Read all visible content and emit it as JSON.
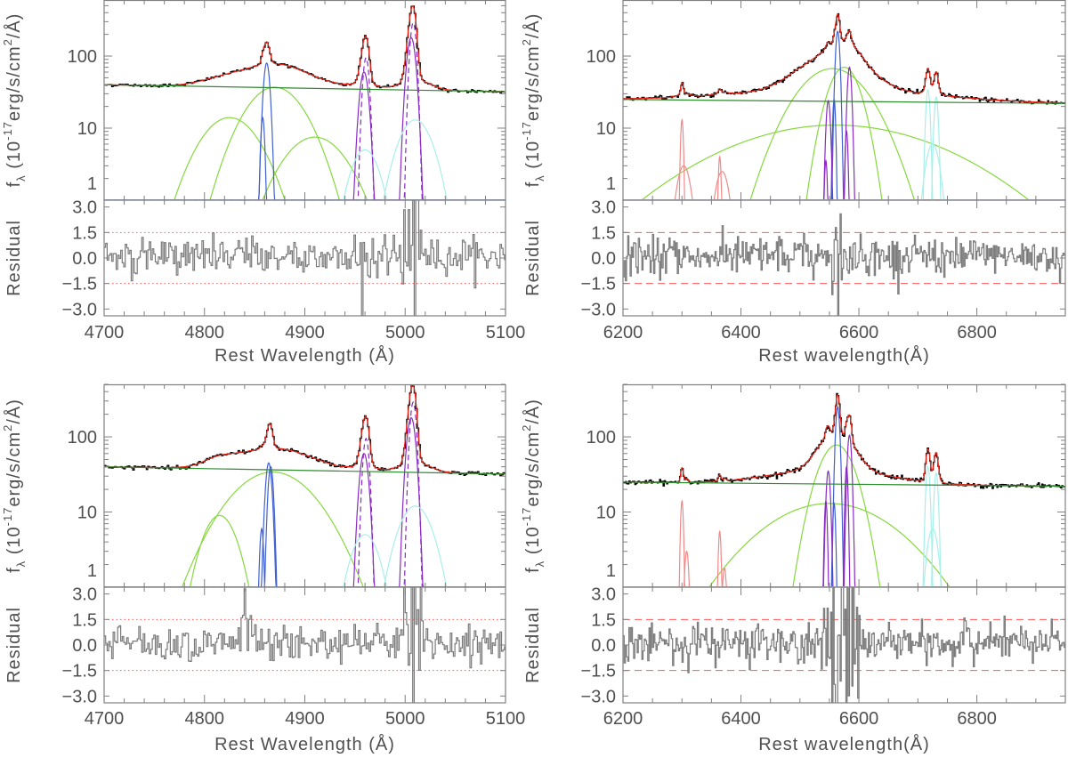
{
  "chart_data": [
    {
      "type": "line",
      "panel": "top-left",
      "xlabel": "Rest Wavelength (Å)",
      "ylabel": {
        "f": "f",
        "sub": "λ",
        "open": " (10",
        "exp": "-17",
        "unit": "erg/s/cm",
        "sq": "2",
        "close": "/Å)"
      },
      "residual_label": "Residual",
      "xlim": [
        4700,
        5100
      ],
      "ylim": [
        1,
        600
      ],
      "yscale": "log",
      "xticks": [
        "4700",
        "4800",
        "4900",
        "5000",
        "5100"
      ],
      "xtick_values": [
        4700,
        4800,
        4900,
        5000,
        5100
      ],
      "xminor": 20,
      "yticks": [
        "1",
        "10",
        "100"
      ],
      "ytick_values": [
        1,
        10,
        100
      ],
      "residual_ticks": [
        "3.0",
        "1.5",
        "0.0",
        "−1.5",
        "−3.0"
      ],
      "residual_tick_values": [
        3,
        1.5,
        0,
        -1.5,
        -3
      ],
      "residual_lim": [
        -3.4,
        3.4
      ],
      "residual_lines": [
        1.5,
        -1.5
      ],
      "residual_line_style": "dotted",
      "continuum": [
        40,
        32
      ],
      "bin": 1.5,
      "noise": 0.025,
      "residual_spikes": [
        {
          "c": 5007,
          "a": 4
        },
        {
          "c": 4959,
          "a": 1.2
        }
      ],
      "components": [
        {
          "kind": "broad",
          "c": 4825,
          "a": 14,
          "s": 24
        },
        {
          "kind": "broad",
          "c": 4870,
          "a": 37,
          "s": 24
        },
        {
          "kind": "broad",
          "c": 4910,
          "a": 7.5,
          "s": 26
        },
        {
          "kind": "narrow",
          "c": 4862,
          "a": 80,
          "s": 2.6
        },
        {
          "kind": "narrow",
          "c": 4858,
          "a": 14,
          "s": 1.6
        },
        {
          "kind": "oiii",
          "c": 4959,
          "a": 60,
          "s": 3.6
        },
        {
          "kind": "oiii-dashed",
          "c": 4961,
          "a": 95,
          "s": 2.6
        },
        {
          "kind": "oiii",
          "c": 5006,
          "a": 180,
          "s": 3.6
        },
        {
          "kind": "oiii-dashed",
          "c": 5008,
          "a": 290,
          "s": 2.6
        },
        {
          "kind": "wing",
          "c": 4960,
          "a": 5,
          "s": 12
        },
        {
          "kind": "wing",
          "c": 5010,
          "a": 13,
          "s": 14
        }
      ]
    },
    {
      "type": "line",
      "panel": "top-right",
      "xlabel": "Rest wavelength(Å)",
      "ylabel": {
        "f": "f",
        "sub": "λ",
        "open": " (10",
        "exp": "-17",
        "unit": "erg/s/cm",
        "sq": "2",
        "close": "/Å)"
      },
      "residual_label": "Residual",
      "xlim": [
        6200,
        6950
      ],
      "ylim": [
        1,
        600
      ],
      "yscale": "log",
      "xticks": [
        "6200",
        "6400",
        "6600",
        "6800"
      ],
      "xtick_values": [
        6200,
        6400,
        6600,
        6800
      ],
      "xminor": 50,
      "yticks": [
        "1",
        "10",
        "100"
      ],
      "ytick_values": [
        1,
        10,
        100
      ],
      "residual_ticks": [
        "3.0",
        "1.5",
        "0.0",
        "−1.5",
        "−3.0"
      ],
      "residual_tick_values": [
        3,
        1.5,
        0,
        -1.5,
        -3
      ],
      "residual_lim": [
        -3.4,
        3.4
      ],
      "residual_lines": [
        1.5,
        -1.5
      ],
      "residual_line_style": "dashed",
      "continuum": [
        25,
        22
      ],
      "bin": 2,
      "noise": 0.035,
      "residual_spikes": [
        {
          "c": 6563,
          "a": 3
        }
      ],
      "components": [
        {
          "kind": "broad",
          "c": 6555,
          "a": 67,
          "s": 48
        },
        {
          "kind": "broad",
          "c": 6575,
          "a": 70,
          "s": 22
        },
        {
          "kind": "broad",
          "c": 6560,
          "a": 11,
          "s": 150
        },
        {
          "kind": "narrow",
          "c": 6564,
          "a": 220,
          "s": 3
        },
        {
          "kind": "narrow",
          "c": 6558,
          "a": 25,
          "s": 2
        },
        {
          "kind": "oiii",
          "c": 6548,
          "a": 24,
          "s": 3
        },
        {
          "kind": "oiii",
          "c": 6544,
          "a": 3.5,
          "s": 2
        },
        {
          "kind": "oiii",
          "c": 6584,
          "a": 70,
          "s": 3
        },
        {
          "kind": "oiii",
          "c": 6579,
          "a": 9,
          "s": 2
        },
        {
          "kind": "oi",
          "c": 6300,
          "a": 13,
          "s": 2
        },
        {
          "kind": "oi",
          "c": 6303,
          "a": 3,
          "s": 10
        },
        {
          "kind": "oi",
          "c": 6364,
          "a": 4,
          "s": 2
        },
        {
          "kind": "oi",
          "c": 6368,
          "a": 2.5,
          "s": 10
        },
        {
          "kind": "wing",
          "c": 6717,
          "a": 34,
          "s": 3
        },
        {
          "kind": "wing",
          "c": 6731,
          "a": 27,
          "s": 3
        },
        {
          "kind": "wing",
          "c": 6725,
          "a": 6,
          "s": 10
        }
      ]
    },
    {
      "type": "line",
      "panel": "bottom-left",
      "xlabel": "Rest Wavelength (Å)",
      "ylabel": {
        "f": "f",
        "sub": "λ",
        "open": " (10",
        "exp": "-17",
        "unit": "erg/s/cm",
        "sq": "2",
        "close": "/Å)"
      },
      "residual_label": "Residual",
      "xlim": [
        4700,
        5100
      ],
      "ylim": [
        1,
        500
      ],
      "yscale": "log",
      "xticks": [
        "4700",
        "4800",
        "4900",
        "5000",
        "5100"
      ],
      "xtick_values": [
        4700,
        4800,
        4900,
        5000,
        5100
      ],
      "xminor": 20,
      "yticks": [
        "1",
        "10",
        "100"
      ],
      "ytick_values": [
        1,
        10,
        100
      ],
      "residual_ticks": [
        "3.0",
        "1.5",
        "0.0",
        "−1.5",
        "−3.0"
      ],
      "residual_tick_values": [
        3,
        1.5,
        0,
        -1.5,
        -3
      ],
      "residual_lim": [
        -3.4,
        3.4
      ],
      "residual_lines": [
        1.5,
        -1.5
      ],
      "residual_line_style": "dotted",
      "continuum": [
        40,
        32
      ],
      "bin": 1.5,
      "noise": 0.028,
      "residual_spikes": [
        {
          "c": 5007,
          "a": 4
        },
        {
          "c": 4840,
          "a": 1.3
        }
      ],
      "components": [
        {
          "kind": "broad",
          "c": 4815,
          "a": 9,
          "s": 14
        },
        {
          "kind": "broad",
          "c": 4868,
          "a": 34,
          "s": 34
        },
        {
          "kind": "narrow",
          "c": 4864,
          "a": 45,
          "s": 2.6
        },
        {
          "kind": "narrow",
          "c": 4866,
          "a": 40,
          "s": 2.2
        },
        {
          "kind": "narrow",
          "c": 4857,
          "a": 6,
          "s": 1.6
        },
        {
          "kind": "oiii",
          "c": 4959,
          "a": 60,
          "s": 3.6
        },
        {
          "kind": "oiii-dashed",
          "c": 4961,
          "a": 95,
          "s": 2.6
        },
        {
          "kind": "oiii",
          "c": 5006,
          "a": 180,
          "s": 3.6
        },
        {
          "kind": "oiii-dashed",
          "c": 5008,
          "a": 290,
          "s": 2.6
        },
        {
          "kind": "wing",
          "c": 4960,
          "a": 5,
          "s": 12
        },
        {
          "kind": "wing",
          "c": 5010,
          "a": 12,
          "s": 14
        }
      ]
    },
    {
      "type": "line",
      "panel": "bottom-right",
      "xlabel": "Rest wavelength(Å)",
      "ylabel": {
        "f": "f",
        "sub": "λ",
        "open": " (10",
        "exp": "-17",
        "unit": "erg/s/cm",
        "sq": "2",
        "close": "/Å)"
      },
      "residual_label": "Residual",
      "xlim": [
        6200,
        6950
      ],
      "ylim": [
        1,
        500
      ],
      "yscale": "log",
      "xticks": [
        "6200",
        "6400",
        "6600",
        "6800"
      ],
      "xtick_values": [
        6200,
        6400,
        6600,
        6800
      ],
      "xminor": 50,
      "yticks": [
        "1",
        "10",
        "100"
      ],
      "ytick_values": [
        1,
        10,
        100
      ],
      "residual_ticks": [
        "3.0",
        "1.5",
        "0.0",
        "−1.5",
        "−3.0"
      ],
      "residual_tick_values": [
        3,
        1.5,
        0,
        -1.5,
        -3
      ],
      "residual_lim": [
        -3.4,
        3.4
      ],
      "residual_lines": [
        1.5,
        -1.5
      ],
      "residual_line_style": "dashed",
      "continuum": [
        25,
        22
      ],
      "bin": 2,
      "noise": 0.035,
      "residual_spikes": [
        {
          "c": 6560,
          "a": 6
        },
        {
          "c": 6575,
          "a": 6
        },
        {
          "c": 6590,
          "a": 5
        },
        {
          "c": 6545,
          "a": 2
        }
      ],
      "components": [
        {
          "kind": "broad",
          "c": 6562,
          "a": 78,
          "s": 25
        },
        {
          "kind": "broad",
          "c": 6550,
          "a": 13,
          "s": 90
        },
        {
          "kind": "narrow",
          "c": 6564,
          "a": 250,
          "s": 3
        },
        {
          "kind": "narrow",
          "c": 6558,
          "a": 13,
          "s": 2
        },
        {
          "kind": "oiii",
          "c": 6548,
          "a": 35,
          "s": 3
        },
        {
          "kind": "oiii",
          "c": 6544,
          "a": 14,
          "s": 2
        },
        {
          "kind": "oiii",
          "c": 6584,
          "a": 105,
          "s": 3
        },
        {
          "kind": "oiii",
          "c": 6579,
          "a": 40,
          "s": 2
        },
        {
          "kind": "oi",
          "c": 6300,
          "a": 14,
          "s": 2
        },
        {
          "kind": "oi",
          "c": 6308,
          "a": 3,
          "s": 3
        },
        {
          "kind": "oi",
          "c": 6364,
          "a": 5.5,
          "s": 2
        },
        {
          "kind": "oi",
          "c": 6372,
          "a": 1.8,
          "s": 3
        },
        {
          "kind": "wing",
          "c": 6717,
          "a": 40,
          "s": 3
        },
        {
          "kind": "wing",
          "c": 6731,
          "a": 33,
          "s": 3
        },
        {
          "kind": "wing",
          "c": 6725,
          "a": 6,
          "s": 8
        }
      ]
    }
  ],
  "colors": {
    "broad": "#86d83e",
    "narrow": "#4060d0",
    "oiii": "#8a2bc2",
    "oiii-dashed": "#8a2bc2",
    "wing": "#a8efe9",
    "oi": "#f08a8a",
    "continuum": "#2e8b2e",
    "model": "#e8261a",
    "data": "#000000",
    "residual": "#7a7a7a",
    "residual_line": "#ff5a5a",
    "axis": "#808080"
  }
}
